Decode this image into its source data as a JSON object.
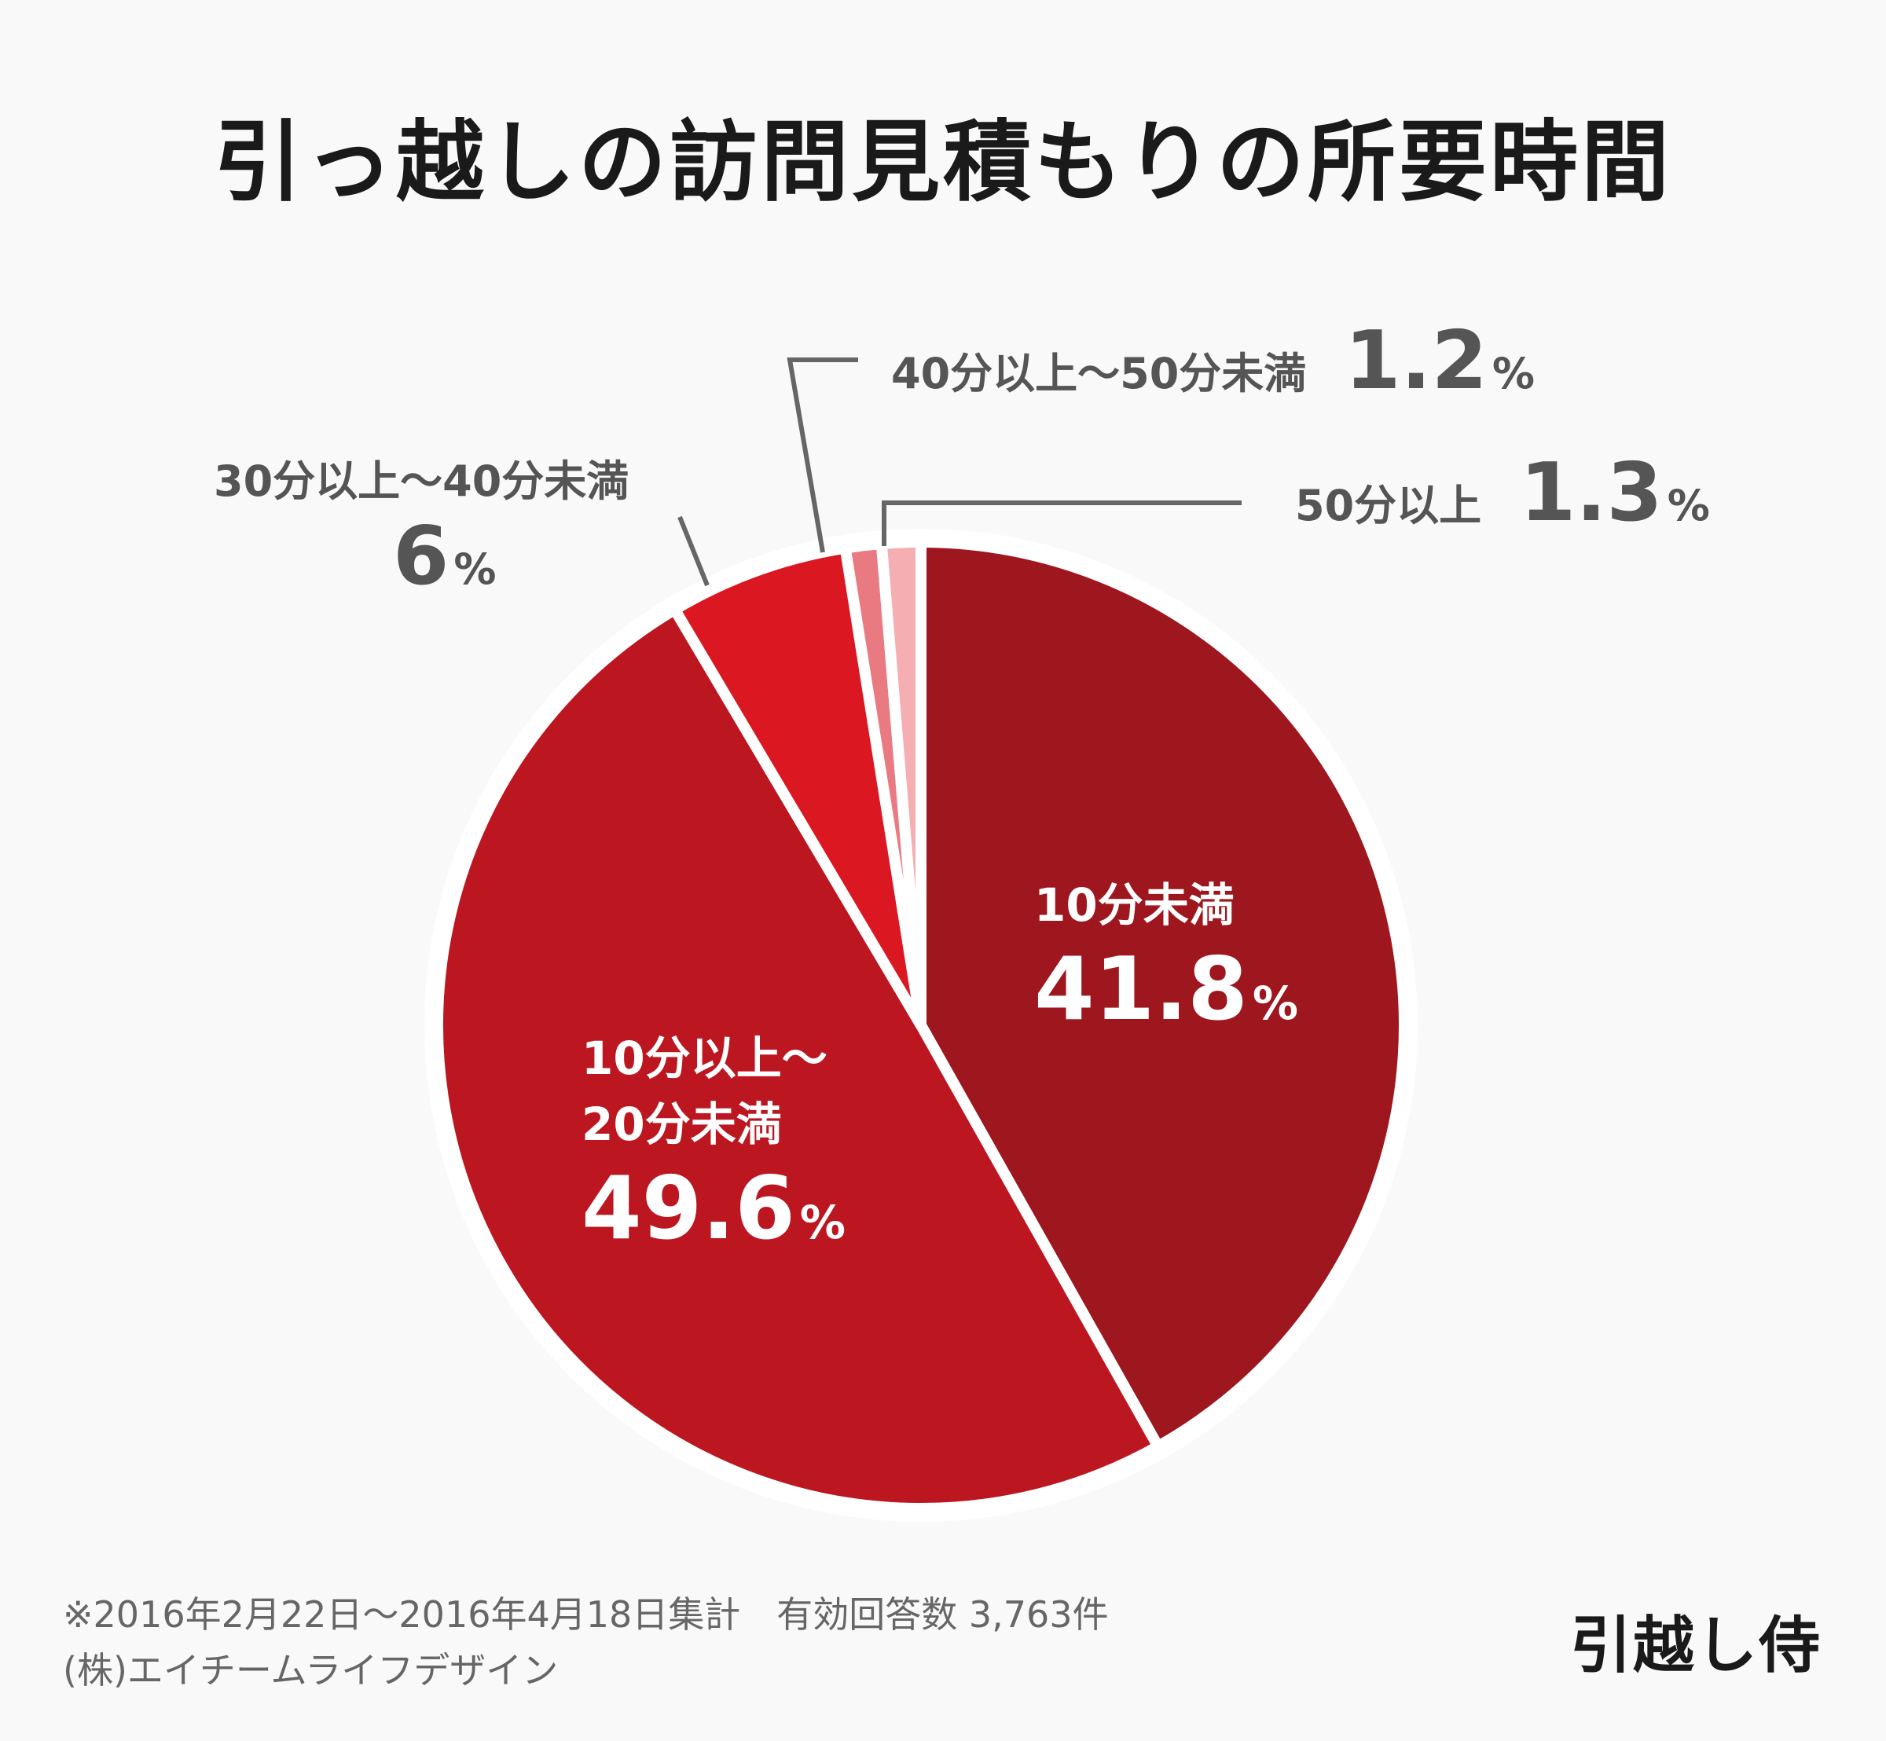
{
  "title": "引っ越しの訪問見積もりの所要時間",
  "chart_data": {
    "type": "pie",
    "title": "引っ越しの訪問見積もりの所要時間",
    "unit": "%",
    "slices": [
      {
        "label": "10分未満",
        "value": 41.8,
        "value_text": "41.8",
        "color": "#9e161e"
      },
      {
        "label": "10分以上～20分未満",
        "value": 49.6,
        "value_text": "49.6",
        "color": "#bc1720"
      },
      {
        "label": "30分以上～40分未満",
        "value": 6,
        "value_text": "6",
        "color": "#db1822"
      },
      {
        "label": "40分以上～50分未満",
        "value": 1.2,
        "value_text": "1.2",
        "color": "#e97a82"
      },
      {
        "label": "50分以上",
        "value": 1.3,
        "value_text": "1.3",
        "color": "#f5aeb2"
      }
    ],
    "start_angle": "12 o'clock",
    "direction": "clockwise",
    "legend": "none",
    "separator_color": "#ffffff",
    "leader_line_color": "#666666"
  },
  "labels": {
    "s0": {
      "cat": "10分未満",
      "num": "41.8",
      "unit": "%"
    },
    "s1": {
      "cat1": "10分以上～",
      "cat2": "20分未満",
      "num": "49.6",
      "unit": "%"
    },
    "s2": {
      "cat": "30分以上～40分未満",
      "num": "6",
      "unit": "%"
    },
    "s3": {
      "cat": "40分以上～50分未満",
      "num": "1.2",
      "unit": "%"
    },
    "s4": {
      "cat": "50分以上",
      "num": "1.3",
      "unit": "%"
    }
  },
  "footnote": {
    "line1": "※2016年2月22日～2016年4月18日集計　有効回答数 3,763件",
    "line2": "(株)エイチームライフデザイン"
  },
  "brand": "引越し侍"
}
